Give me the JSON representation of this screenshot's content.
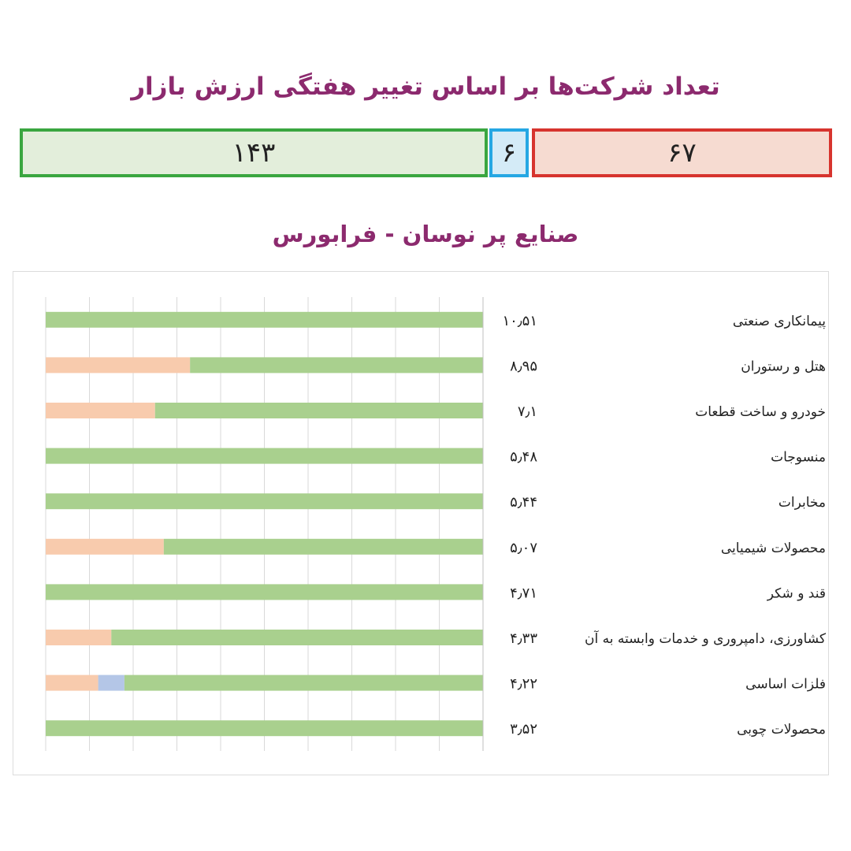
{
  "title": "تعداد شرکت‌ها بر اساس تغییر هفتگی ارزش بازار",
  "summary": {
    "up": "۱۴۳",
    "flat": "۶",
    "down": "۶۷"
  },
  "colors": {
    "title": "#8c2a6e",
    "up": "#a9d08e",
    "flat": "#b4c6e7",
    "down": "#f8cbad"
  },
  "chart_data": {
    "type": "bar",
    "orientation": "horizontal-stacked",
    "title": "صنایع پر نوسان - فرابورس",
    "categories": [
      "پیمانکاری صنعتی",
      "هتل و رستوران",
      "خودرو و ساخت قطعات",
      "منسوجات",
      "مخابرات",
      "محصولات شیمیایی",
      "قند و شکر",
      "کشاورزی، دامپروری و خدمات وابسته به آن",
      "فلزات اساسی",
      "محصولات چوبی"
    ],
    "value_labels": [
      "۱۰٫۵۱",
      "۸٫۹۵",
      "۷٫۱",
      "۵٫۴۸",
      "۵٫۴۴",
      "۵٫۰۷",
      "۴٫۷۱",
      "۴٫۳۳",
      "۴٫۲۲",
      "۳٫۵۲"
    ],
    "series": [
      {
        "values": [
          0,
          33,
          25,
          0,
          0,
          27,
          0,
          15,
          12,
          0
        ]
      },
      {
        "values": [
          0,
          0,
          0,
          0,
          0,
          0,
          0,
          0,
          6,
          0
        ]
      },
      {
        "values": [
          100,
          67,
          75,
          100,
          100,
          73,
          100,
          85,
          82,
          100
        ]
      }
    ],
    "xlim": [
      0,
      100
    ],
    "grid": true,
    "gridlines": 10
  }
}
